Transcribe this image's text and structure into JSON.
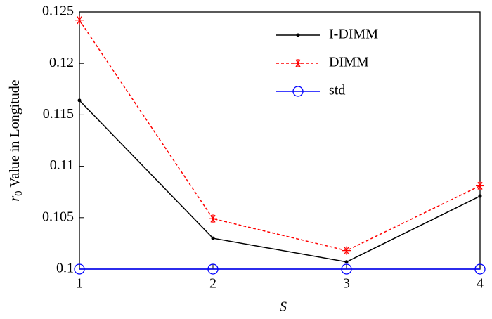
{
  "chart_data": {
    "type": "line",
    "x": [
      1,
      2,
      3,
      4
    ],
    "xlim": [
      1,
      4
    ],
    "xticks": [
      1,
      2,
      3,
      4
    ],
    "ylim": [
      0.1,
      0.125
    ],
    "yticks": [
      0.1,
      0.105,
      0.11,
      0.115,
      0.12,
      0.125
    ],
    "xlabel": "S",
    "ylabel": {
      "base": "r",
      "subscript": "0",
      "rest": " Value in Longitude"
    },
    "legend": "top-right",
    "series": [
      {
        "name": "I-DIMM",
        "color": "#000000",
        "dash": false,
        "marker": "dot",
        "values": [
          0.1164,
          0.103,
          0.1007,
          0.1071
        ]
      },
      {
        "name": "DIMM",
        "color": "#ff0000",
        "dash": true,
        "marker": "asterisk",
        "values": [
          0.1242,
          0.1049,
          0.1018,
          0.1081
        ]
      },
      {
        "name": "std",
        "color": "#0000ff",
        "dash": false,
        "marker": "circle",
        "values": [
          0.1,
          0.1,
          0.1,
          0.1
        ]
      }
    ]
  }
}
